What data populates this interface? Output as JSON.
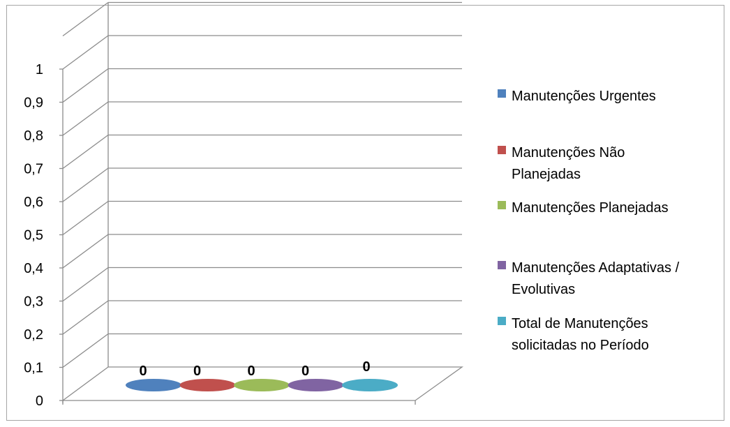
{
  "chart_data": {
    "type": "bar",
    "title": "",
    "xlabel": "",
    "ylabel": "",
    "ylim": [
      0,
      1
    ],
    "yticks": [
      0,
      0.1,
      0.2,
      0.3,
      0.4,
      0.5,
      0.6,
      0.7,
      0.8,
      0.9,
      1
    ],
    "ytick_labels": [
      "0",
      "0,1",
      "0,2",
      "0,3",
      "0,4",
      "0,5",
      "0,6",
      "0,7",
      "0,8",
      "0,9",
      "1"
    ],
    "grid": true,
    "three_d": true,
    "legend_position": "right",
    "series": [
      {
        "name": "Manutenções Urgentes",
        "legend_lines": [
          "Manutenções Urgentes"
        ],
        "value": 0,
        "label": "0",
        "color": "#4f81bd"
      },
      {
        "name": "Manutenções Não Planejadas",
        "legend_lines": [
          "Manutenções Não",
          "Planejadas"
        ],
        "value": 0,
        "label": "0",
        "color": "#c0504d"
      },
      {
        "name": "Manutenções Planejadas",
        "legend_lines": [
          "Manutenções Planejadas"
        ],
        "value": 0,
        "label": "0",
        "color": "#9bbb59"
      },
      {
        "name": "Manutenções Adaptativas / Evolutivas",
        "legend_lines": [
          "Manutenções Adaptativas /",
          "Evolutivas"
        ],
        "value": 0,
        "label": "0",
        "color": "#8064a2"
      },
      {
        "name": "Total de Manutenções solicitadas no Período",
        "legend_lines": [
          "Total de Manutenções",
          "solicitadas no Período"
        ],
        "value": 0,
        "label": "0",
        "color": "#4bacc6"
      }
    ]
  }
}
